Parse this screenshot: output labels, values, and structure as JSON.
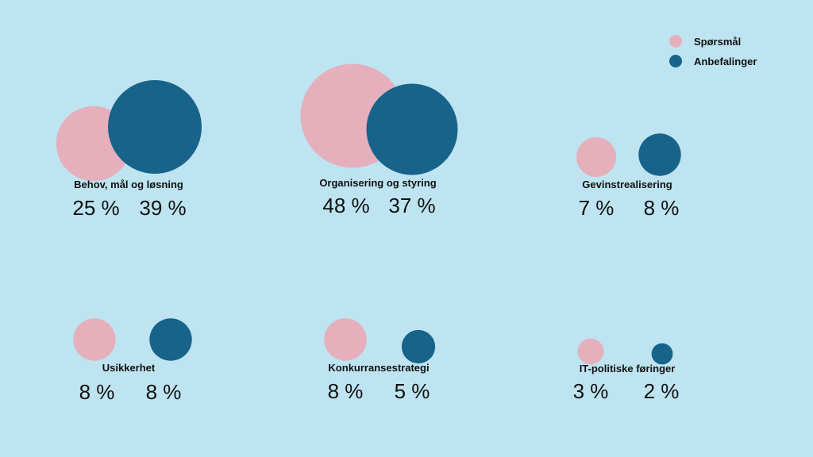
{
  "colors": {
    "background": "#bde4f0",
    "sporsmal": "#e6afbc",
    "anbefalinger": "#18638a"
  },
  "legend": {
    "items": [
      {
        "label": "Spørsmål",
        "color": "#e6afbc"
      },
      {
        "label": "Anbefalinger",
        "color": "#18638a"
      }
    ]
  },
  "chart_data": {
    "type": "bubble",
    "series": [
      {
        "name": "Spørsmål",
        "values": [
          25,
          48,
          7,
          8,
          8,
          3
        ]
      },
      {
        "name": "Anbefalinger",
        "values": [
          39,
          37,
          8,
          8,
          5,
          2
        ]
      }
    ],
    "categories": [
      "Behov, mål og løsning",
      "Organisering og styring",
      "Gevinstrealisering",
      "Usikkerhet",
      "Konkurransestrategi",
      "IT-politiske føringer"
    ],
    "unit": "%",
    "value_labels": {
      "sporsmal": [
        "25 %",
        "48 %",
        "7 %",
        "8 %",
        "8 %",
        "3 %"
      ],
      "anbefalinger": [
        "39 %",
        "37 %",
        "8 %",
        "8 %",
        "5 %",
        "2 %"
      ]
    },
    "legend_position": "top-right"
  }
}
